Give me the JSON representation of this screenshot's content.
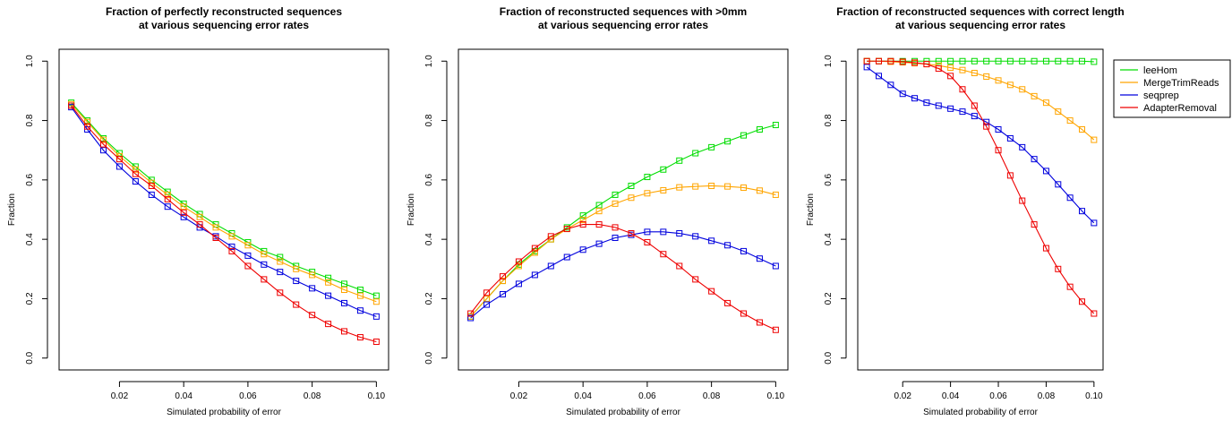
{
  "chart_data": [
    {
      "type": "line",
      "title_lines": [
        "Fraction of perfectly reconstructed sequences",
        "at various sequencing error rates"
      ],
      "xlabel": "Simulated probability of error",
      "ylabel": "Fraction",
      "xlim": [
        0.005,
        0.1
      ],
      "ylim": [
        0,
        1
      ],
      "x_ticks": [
        0.02,
        0.04,
        0.06,
        0.08,
        0.1
      ],
      "x_tick_labels": [
        "0.02",
        "0.04",
        "0.06",
        "0.08",
        "0.10"
      ],
      "y_ticks": [
        0.0,
        0.2,
        0.4,
        0.6,
        0.8,
        1.0
      ],
      "y_tick_labels": [
        "0.0",
        "0.2",
        "0.4",
        "0.6",
        "0.8",
        "1.0"
      ],
      "grid": false,
      "legend": false,
      "x": [
        0.005,
        0.01,
        0.015,
        0.02,
        0.025,
        0.03,
        0.035,
        0.04,
        0.045,
        0.05,
        0.055,
        0.06,
        0.065,
        0.07,
        0.075,
        0.08,
        0.085,
        0.09,
        0.095,
        0.1
      ],
      "series": [
        {
          "name": "leeHom",
          "color": "#00dd00",
          "values": [
            0.86,
            0.8,
            0.74,
            0.69,
            0.645,
            0.6,
            0.56,
            0.52,
            0.485,
            0.45,
            0.42,
            0.39,
            0.36,
            0.34,
            0.31,
            0.29,
            0.27,
            0.25,
            0.23,
            0.21
          ]
        },
        {
          "name": "MergeTrimReads",
          "color": "#ffa500",
          "values": [
            0.855,
            0.795,
            0.735,
            0.68,
            0.635,
            0.59,
            0.55,
            0.51,
            0.475,
            0.44,
            0.41,
            0.38,
            0.35,
            0.325,
            0.3,
            0.28,
            0.255,
            0.23,
            0.21,
            0.19
          ]
        },
        {
          "name": "seqprep",
          "color": "#0000dd",
          "values": [
            0.845,
            0.77,
            0.7,
            0.645,
            0.595,
            0.55,
            0.51,
            0.475,
            0.44,
            0.41,
            0.375,
            0.345,
            0.315,
            0.29,
            0.26,
            0.235,
            0.21,
            0.185,
            0.16,
            0.14
          ]
        },
        {
          "name": "AdapterRemoval",
          "color": "#ee0000",
          "values": [
            0.85,
            0.78,
            0.72,
            0.67,
            0.62,
            0.58,
            0.535,
            0.49,
            0.45,
            0.405,
            0.36,
            0.31,
            0.265,
            0.22,
            0.18,
            0.145,
            0.115,
            0.09,
            0.07,
            0.055
          ]
        }
      ]
    },
    {
      "type": "line",
      "title_lines": [
        "Fraction of reconstructed sequences with >0mm",
        "at various sequencing error rates"
      ],
      "xlabel": "Simulated probability of error",
      "ylabel": "Fraction",
      "xlim": [
        0.005,
        0.1
      ],
      "ylim": [
        0,
        1
      ],
      "x_ticks": [
        0.02,
        0.04,
        0.06,
        0.08,
        0.1
      ],
      "x_tick_labels": [
        "0.02",
        "0.04",
        "0.06",
        "0.08",
        "0.10"
      ],
      "y_ticks": [
        0.0,
        0.2,
        0.4,
        0.6,
        0.8,
        1.0
      ],
      "y_tick_labels": [
        "0.0",
        "0.2",
        "0.4",
        "0.6",
        "0.8",
        "1.0"
      ],
      "grid": false,
      "legend": false,
      "x": [
        0.005,
        0.01,
        0.015,
        0.02,
        0.025,
        0.03,
        0.035,
        0.04,
        0.045,
        0.05,
        0.055,
        0.06,
        0.065,
        0.07,
        0.075,
        0.08,
        0.085,
        0.09,
        0.095,
        0.1
      ],
      "series": [
        {
          "name": "leeHom",
          "color": "#00dd00",
          "values": [
            0.14,
            0.2,
            0.26,
            0.315,
            0.36,
            0.4,
            0.44,
            0.48,
            0.515,
            0.55,
            0.58,
            0.61,
            0.635,
            0.665,
            0.69,
            0.71,
            0.73,
            0.75,
            0.77,
            0.785
          ]
        },
        {
          "name": "MergeTrimReads",
          "color": "#ffa500",
          "values": [
            0.14,
            0.2,
            0.26,
            0.31,
            0.355,
            0.4,
            0.435,
            0.465,
            0.495,
            0.52,
            0.54,
            0.555,
            0.565,
            0.575,
            0.578,
            0.58,
            0.578,
            0.574,
            0.564,
            0.55
          ]
        },
        {
          "name": "seqprep",
          "color": "#0000dd",
          "values": [
            0.135,
            0.18,
            0.215,
            0.25,
            0.28,
            0.31,
            0.34,
            0.365,
            0.385,
            0.405,
            0.415,
            0.425,
            0.425,
            0.42,
            0.41,
            0.395,
            0.38,
            0.36,
            0.335,
            0.31
          ]
        },
        {
          "name": "AdapterRemoval",
          "color": "#ee0000",
          "values": [
            0.15,
            0.22,
            0.275,
            0.325,
            0.37,
            0.41,
            0.435,
            0.45,
            0.45,
            0.44,
            0.42,
            0.39,
            0.35,
            0.31,
            0.265,
            0.225,
            0.185,
            0.15,
            0.12,
            0.095
          ]
        }
      ]
    },
    {
      "type": "line",
      "title_lines": [
        "Fraction of reconstructed sequences with correct length",
        "at various sequencing error rates"
      ],
      "xlabel": "Simulated probability of error",
      "ylabel": "Fraction",
      "xlim": [
        0.005,
        0.1
      ],
      "ylim": [
        0,
        1
      ],
      "x_ticks": [
        0.02,
        0.04,
        0.06,
        0.08,
        0.1
      ],
      "x_tick_labels": [
        "0.02",
        "0.04",
        "0.06",
        "0.08",
        "0.10"
      ],
      "y_ticks": [
        0.0,
        0.2,
        0.4,
        0.6,
        0.8,
        1.0
      ],
      "y_tick_labels": [
        "0.0",
        "0.2",
        "0.4",
        "0.6",
        "0.8",
        "1.0"
      ],
      "grid": false,
      "legend": true,
      "legend_position": "right",
      "x": [
        0.005,
        0.01,
        0.015,
        0.02,
        0.025,
        0.03,
        0.035,
        0.04,
        0.045,
        0.05,
        0.055,
        0.06,
        0.065,
        0.07,
        0.075,
        0.08,
        0.085,
        0.09,
        0.095,
        0.1
      ],
      "series": [
        {
          "name": "leeHom",
          "color": "#00dd00",
          "values": [
            1.0,
            1.0,
            1.0,
            1.0,
            1.0,
            1.0,
            1.0,
            1.0,
            1.0,
            1.0,
            1.0,
            1.0,
            1.0,
            1.0,
            1.0,
            1.0,
            1.0,
            1.0,
            1.0,
            0.998
          ]
        },
        {
          "name": "MergeTrimReads",
          "color": "#ffa500",
          "values": [
            1.0,
            1.0,
            0.998,
            0.996,
            0.993,
            0.99,
            0.985,
            0.978,
            0.97,
            0.96,
            0.948,
            0.935,
            0.92,
            0.905,
            0.882,
            0.86,
            0.83,
            0.8,
            0.77,
            0.735
          ]
        },
        {
          "name": "seqprep",
          "color": "#0000dd",
          "values": [
            0.98,
            0.95,
            0.92,
            0.89,
            0.875,
            0.86,
            0.85,
            0.84,
            0.83,
            0.815,
            0.795,
            0.77,
            0.74,
            0.71,
            0.67,
            0.63,
            0.585,
            0.54,
            0.495,
            0.455
          ]
        },
        {
          "name": "AdapterRemoval",
          "color": "#ee0000",
          "values": [
            1.0,
            1.0,
            1.0,
            0.998,
            0.995,
            0.99,
            0.975,
            0.95,
            0.905,
            0.85,
            0.78,
            0.7,
            0.615,
            0.53,
            0.45,
            0.37,
            0.3,
            0.24,
            0.19,
            0.15
          ]
        }
      ]
    }
  ]
}
